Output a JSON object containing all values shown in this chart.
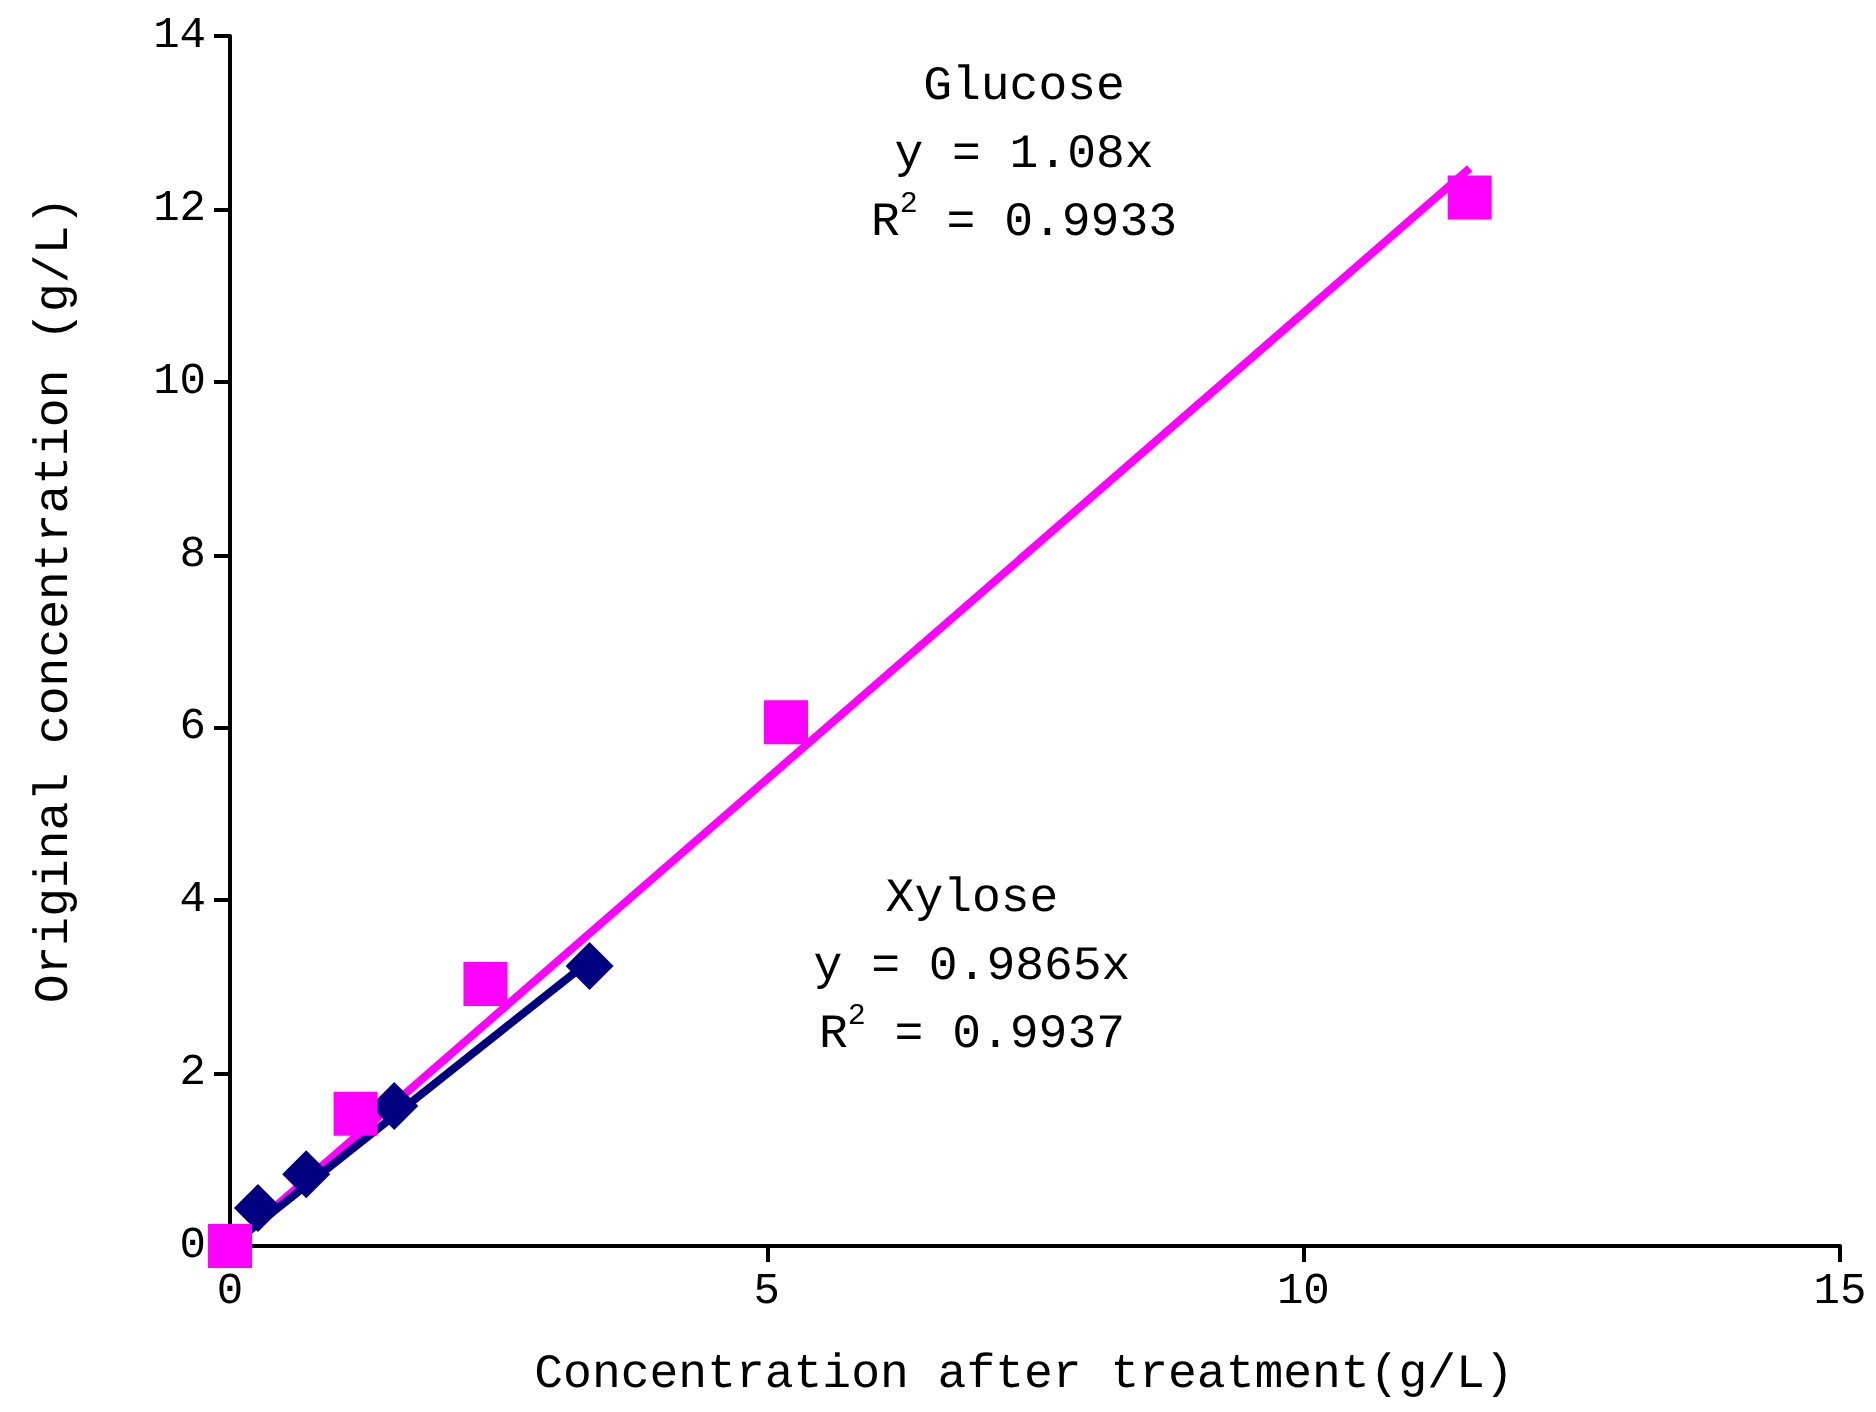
{
  "chart_data": {
    "type": "scatter",
    "xlabel": "Concentration after treatment(g/L)",
    "ylabel": "Original concentration (g/L)",
    "xlim": [
      0,
      15
    ],
    "xticks": [
      0,
      5,
      10,
      15
    ],
    "ylim": [
      0,
      14
    ],
    "yticks": [
      0,
      2,
      4,
      6,
      8,
      10,
      12,
      14
    ],
    "grid": false,
    "series": [
      {
        "type": "line",
        "color": "#ff00ff",
        "marker": "none",
        "line_style": "solid",
        "x": [
          0,
          11.55
        ],
        "values": [
          0,
          12.47
        ]
      },
      {
        "type": "line",
        "color": "#000080",
        "marker": "none",
        "line_style": "solid",
        "x": [
          0,
          3.35
        ],
        "values": [
          0,
          3.3
        ]
      },
      {
        "color": "#000080",
        "marker": "diamond",
        "x": [
          0.26,
          0.71,
          1.53,
          3.35
        ],
        "values": [
          0.44,
          0.83,
          1.62,
          3.24
        ]
      },
      {
        "color": "#ff00ff",
        "marker": "square",
        "x": [
          0,
          1.17,
          2.38,
          5.18,
          11.55
        ],
        "values": [
          0,
          1.53,
          3.03,
          6.06,
          12.13
        ]
      }
    ],
    "annotations": [
      "Glucose\ny = 1.08x\nR$^{2}$ = 0.9933",
      "Xylose\ny = 0.9865x\nR$^{2}$ = 0.9937"
    ]
  }
}
